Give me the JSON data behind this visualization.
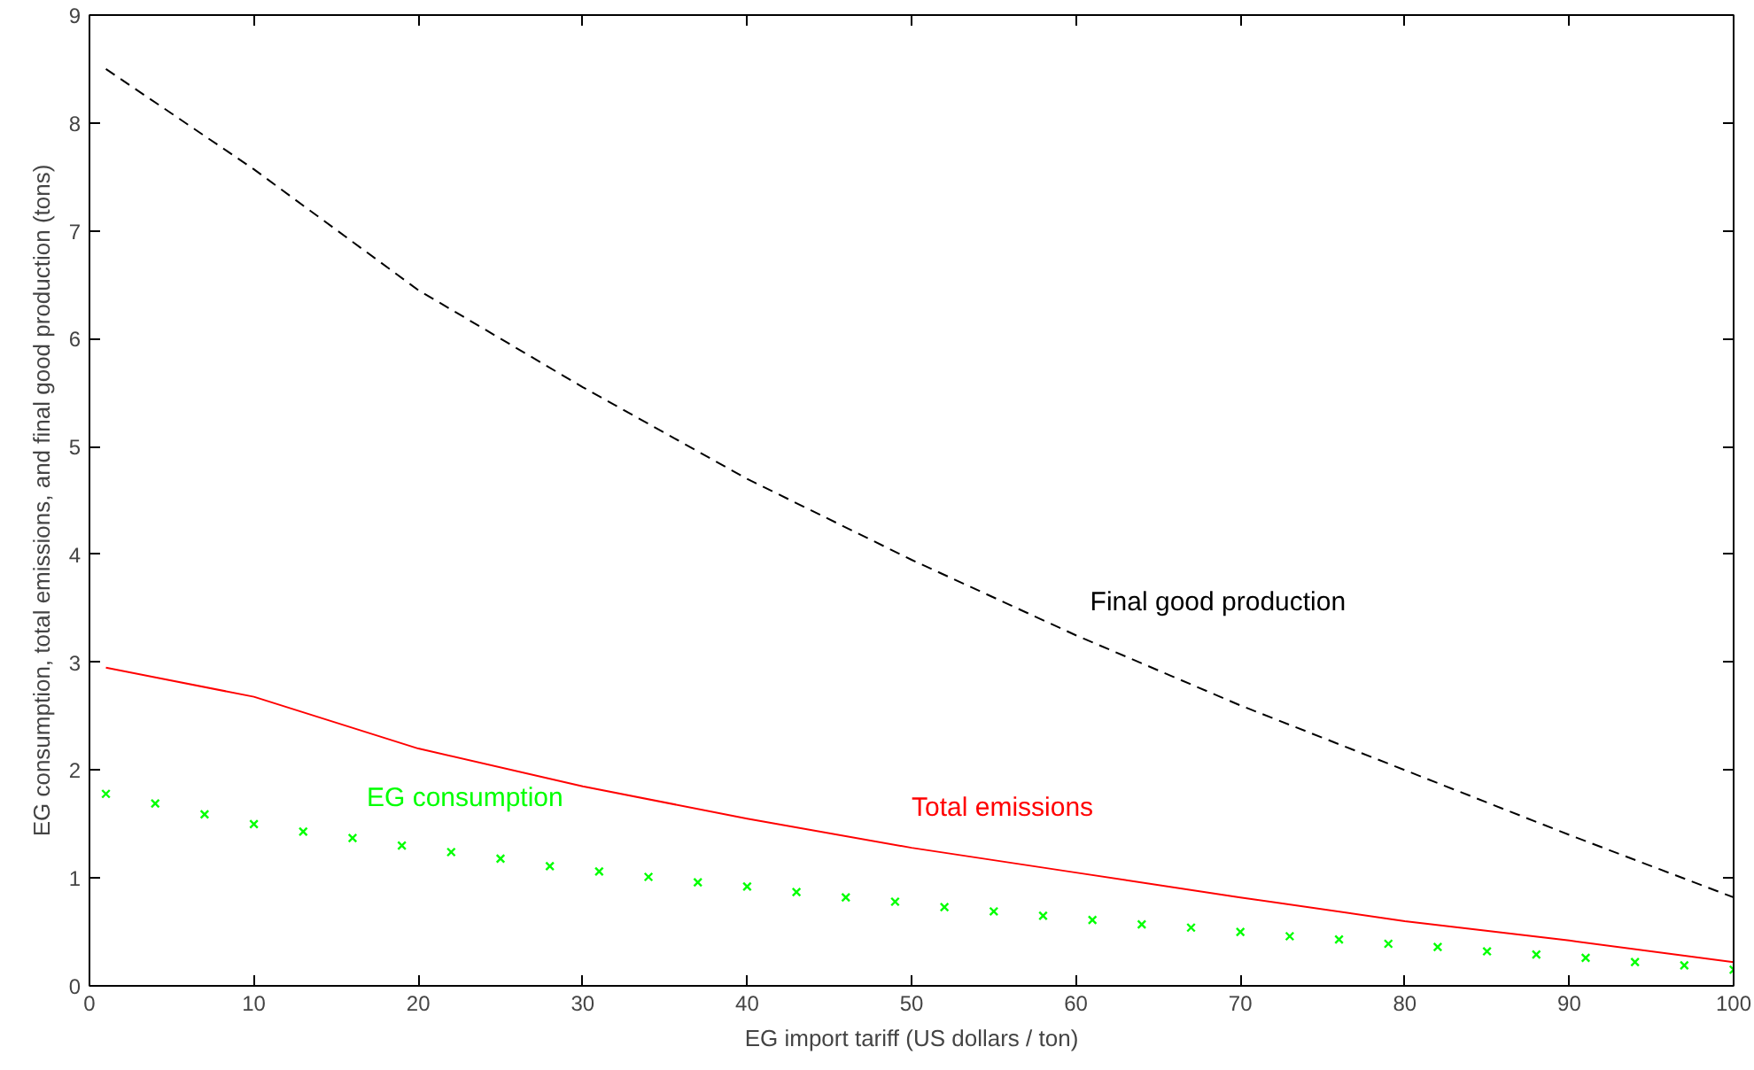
{
  "chart_data": {
    "type": "line",
    "xlabel": "EG import tariff (US dollars / ton)",
    "ylabel": "EG consumption, total emissions, and final good production (tons)",
    "xlim": [
      0,
      100
    ],
    "ylim": [
      0,
      9
    ],
    "xticks": [
      0,
      10,
      20,
      30,
      40,
      50,
      60,
      70,
      80,
      90,
      100
    ],
    "yticks": [
      0,
      1,
      2,
      3,
      4,
      5,
      6,
      7,
      8,
      9
    ],
    "grid": false,
    "series": [
      {
        "name": "Final good production",
        "color": "#000000",
        "line_style": "dashed",
        "marker": "none",
        "x": [
          1,
          10,
          20,
          30,
          40,
          50,
          60,
          70,
          80,
          90,
          100
        ],
        "values": [
          8.5,
          7.57,
          6.45,
          5.55,
          4.7,
          3.95,
          3.25,
          2.6,
          2.0,
          1.4,
          0.82
        ]
      },
      {
        "name": "Total emissions",
        "color": "#ff0000",
        "line_style": "solid",
        "marker": "none",
        "x": [
          1,
          10,
          20,
          30,
          40,
          50,
          60,
          70,
          80,
          90,
          100
        ],
        "values": [
          2.95,
          2.68,
          2.2,
          1.85,
          1.55,
          1.28,
          1.05,
          0.82,
          0.6,
          0.42,
          0.22
        ]
      },
      {
        "name": "EG consumption",
        "type": "scatter",
        "color": "#00ff00",
        "marker": "cross",
        "x": [
          1,
          4,
          7,
          10,
          13,
          16,
          19,
          22,
          25,
          28,
          31,
          34,
          37,
          40,
          43,
          46,
          49,
          52,
          55,
          58,
          61,
          64,
          67,
          70,
          73,
          76,
          79,
          82,
          85,
          88,
          91,
          94,
          97,
          100
        ],
        "values": [
          1.78,
          1.69,
          1.59,
          1.5,
          1.43,
          1.37,
          1.3,
          1.24,
          1.18,
          1.11,
          1.06,
          1.01,
          0.96,
          0.92,
          0.87,
          0.82,
          0.78,
          0.73,
          0.69,
          0.65,
          0.61,
          0.57,
          0.54,
          0.5,
          0.46,
          0.43,
          0.39,
          0.36,
          0.32,
          0.29,
          0.26,
          0.22,
          0.19,
          0.15
        ]
      }
    ]
  }
}
